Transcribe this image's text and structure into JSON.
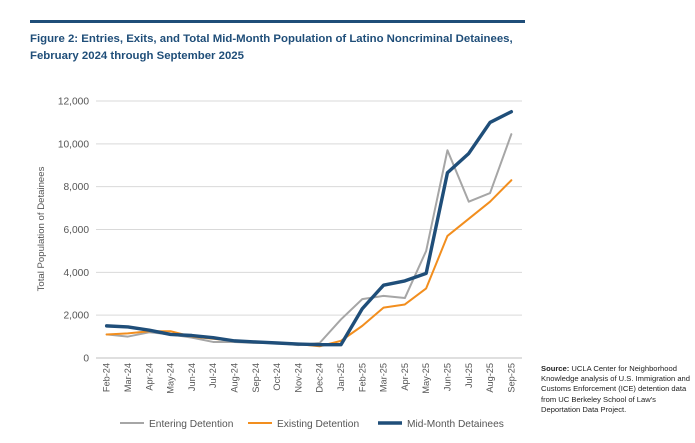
{
  "figure": {
    "title_line1": "Figure 2: Entries, Exits, and Total Mid-Month Population of Latino Noncriminal Detainees,",
    "title_line2": "February 2024 through September 2025"
  },
  "source": {
    "label": "Source:",
    "text": "UCLA Center for Neighborhood Knowledge analysis of U.S. Immigration and Customs Enforcement (ICE) detention data from UC Berkeley School of Law's Deportation Data Project."
  },
  "chart_data": {
    "type": "line",
    "title": "Figure 2: Entries, Exits, and Total Mid-Month Population of Latino Noncriminal Detainees, February 2024 through September 2025",
    "xlabel": "",
    "ylabel": "Total Population of Detainees",
    "ylim": [
      0,
      12000
    ],
    "yticks": [
      0,
      2000,
      4000,
      6000,
      8000,
      10000,
      12000
    ],
    "ytick_labels": [
      "0",
      "2,000",
      "4,000",
      "6,000",
      "8,000",
      "10,000",
      "12,000"
    ],
    "grid": true,
    "legend_position": "bottom",
    "categories": [
      "Feb-24",
      "Mar-24",
      "Apr-24",
      "May-24",
      "Jun-24",
      "Jul-24",
      "Aug-24",
      "Sep-24",
      "Oct-24",
      "Nov-24",
      "Dec-24",
      "Jan-25",
      "Feb-25",
      "Mar-25",
      "Apr-25",
      "May-25",
      "Jun-25",
      "Jul-25",
      "Aug-25",
      "Sep-25"
    ],
    "series": [
      {
        "name": "Entering Detention",
        "color": "#a6a6a6",
        "width": 2,
        "values": [
          1100,
          1000,
          1200,
          1100,
          950,
          750,
          750,
          700,
          700,
          600,
          700,
          1800,
          2750,
          2900,
          2800,
          5000,
          9700,
          7300,
          7700,
          10450
        ]
      },
      {
        "name": "Existing Detention",
        "color": "#f28e1e",
        "width": 2,
        "values": [
          1100,
          1150,
          1250,
          1250,
          1000,
          900,
          800,
          750,
          700,
          650,
          550,
          800,
          1500,
          2350,
          2500,
          3250,
          5700,
          6500,
          7300,
          8300
        ]
      },
      {
        "name": "Mid-Month Detainees",
        "color": "#1f4e79",
        "width": 3.4,
        "values": [
          1500,
          1450,
          1300,
          1100,
          1050,
          950,
          800,
          750,
          700,
          650,
          620,
          620,
          2300,
          3400,
          3600,
          3950,
          8650,
          9550,
          11000,
          11500
        ]
      }
    ]
  }
}
